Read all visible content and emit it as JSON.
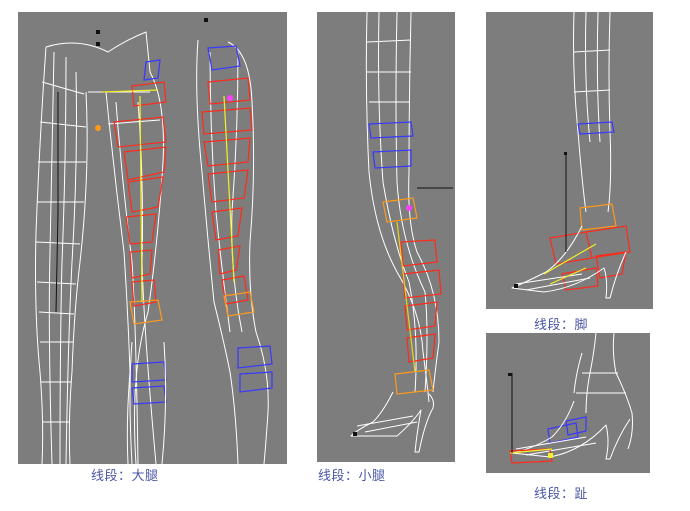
{
  "panels": {
    "thigh": {
      "caption": "线段：大腿"
    },
    "shin": {
      "caption": "线段：小腿"
    },
    "foot": {
      "caption": "线段：脚"
    },
    "toe": {
      "caption": "线段：趾"
    }
  },
  "colors": {
    "viewport_bg": "#7d7d7d",
    "wire": "#ffffff",
    "selected_red": "#ff2a1a",
    "selected_blue": "#3838ff",
    "selected_orange": "#ff9a1a",
    "bone_yellow": "#f3ef2a",
    "caption_text": "#4a56a6"
  }
}
